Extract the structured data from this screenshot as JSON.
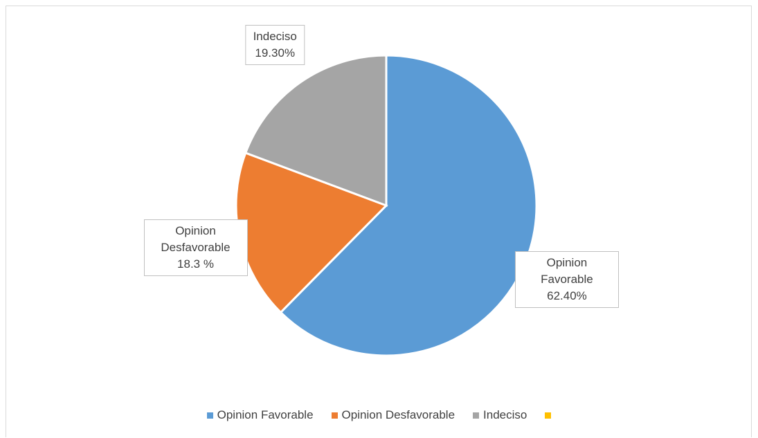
{
  "chart_data": {
    "type": "pie",
    "categories": [
      "Opinion Favorable",
      "Opinion Desfavorable",
      "Indeciso",
      null
    ],
    "values": [
      62.4,
      18.3,
      19.3,
      0
    ],
    "value_labels": [
      "62.40%",
      "18.3 %",
      "19.30%",
      null
    ],
    "colors": [
      "#5b9bd5",
      "#ed7d31",
      "#a5a5a5",
      "#ffc000"
    ],
    "legend": "bottom"
  }
}
